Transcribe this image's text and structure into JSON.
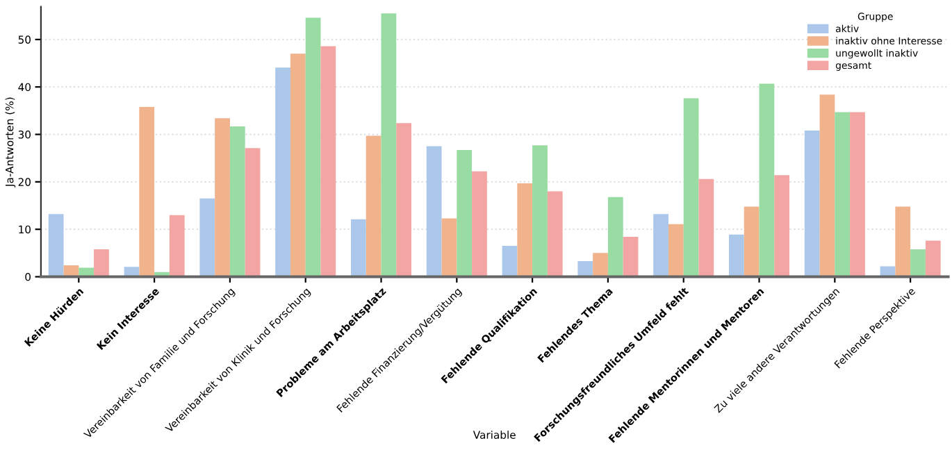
{
  "chart_data": {
    "type": "bar",
    "xlabel": "Variable",
    "ylabel": "Ja-Antworten (%)",
    "legend_title": "Gruppe",
    "legend": "top right",
    "grid": "y",
    "categories": [
      "Keine Hürden",
      "Kein Interesse",
      "Vereinbarkeit von Familie und Forschung",
      "Vereinbarkeit von Klinik und Forschung",
      "Probleme am Arbeitsplatz",
      "Fehlende Finanzierung/Vergütung",
      "Fehlende Qualifikation",
      "Fehlendes Thema",
      "Forschungsfreundliches Umfeld fehlt",
      "Fehlende Mentorinnen und Mentoren",
      "Zu viele andere Verantwortungen",
      "Fehlende Perspektive"
    ],
    "ylim": [
      0,
      56.9
    ],
    "yticks": [
      0,
      10,
      20,
      30,
      40,
      50
    ],
    "series": [
      {
        "name": "aktiv",
        "color": "#abc8ea",
        "values": [
          13.2,
          2.1,
          16.5,
          44.1,
          12.1,
          27.5,
          6.5,
          3.3,
          13.2,
          8.9,
          30.8,
          2.2
        ]
      },
      {
        "name": "inaktiv ohne Interesse",
        "color": "#f0b38c",
        "values": [
          2.4,
          35.8,
          33.4,
          47.0,
          29.7,
          12.3,
          19.7,
          5.0,
          11.1,
          14.8,
          38.4,
          14.8
        ]
      },
      {
        "name": "ungewollt inaktiv",
        "color": "#98dca4",
        "values": [
          1.9,
          1.0,
          31.7,
          54.6,
          55.5,
          26.7,
          27.7,
          16.8,
          37.6,
          40.7,
          34.7,
          5.8
        ]
      },
      {
        "name": "gesamt",
        "color": "#f2a5a3",
        "values": [
          5.8,
          13.0,
          27.1,
          48.6,
          32.4,
          22.2,
          18.0,
          8.4,
          20.6,
          21.4,
          34.7,
          7.6
        ]
      }
    ]
  }
}
